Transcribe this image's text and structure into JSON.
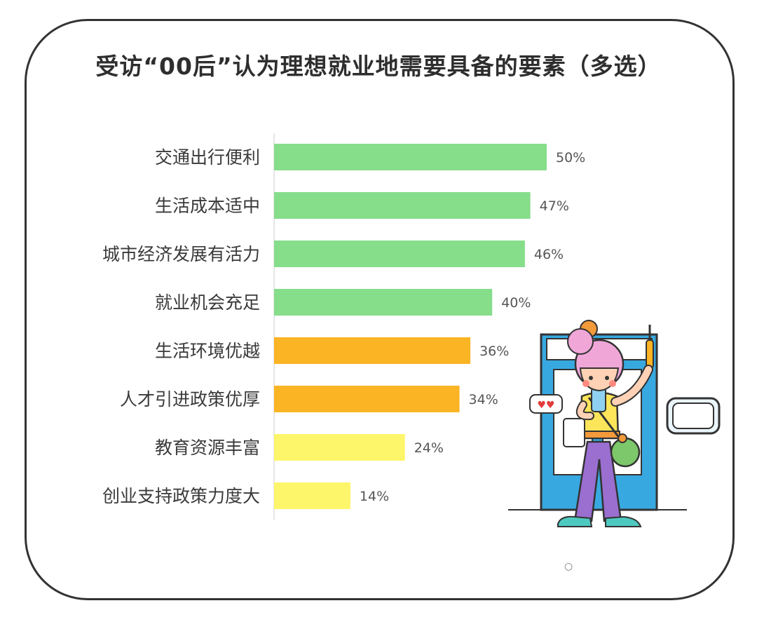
{
  "colors": {
    "green": "#86dd8a",
    "orange": "#fbb424",
    "yellow": "#fdf56a",
    "axis": "#cfcfcf"
  },
  "footer_mark": "○",
  "chart_data": {
    "type": "bar",
    "orientation": "horizontal",
    "title": "受访“00后”认为理想就业地需要具备的要素（多选）",
    "categories": [
      "交通出行便利",
      "生活成本适中",
      "城市经济发展有活力",
      "就业机会充足",
      "生活环境优越",
      "人才引进政策优厚",
      "教育资源丰富",
      "创业支持政策力度大"
    ],
    "values": [
      50,
      47,
      46,
      40,
      36,
      34,
      24,
      14
    ],
    "value_labels": [
      "50%",
      "47%",
      "46%",
      "40%",
      "36%",
      "34%",
      "24%",
      "14%"
    ],
    "bar_colors": [
      "green",
      "green",
      "green",
      "green",
      "orange",
      "orange",
      "yellow",
      "yellow"
    ],
    "unit": "%",
    "xlim": [
      0,
      50
    ],
    "grid": false,
    "legend": "none"
  }
}
